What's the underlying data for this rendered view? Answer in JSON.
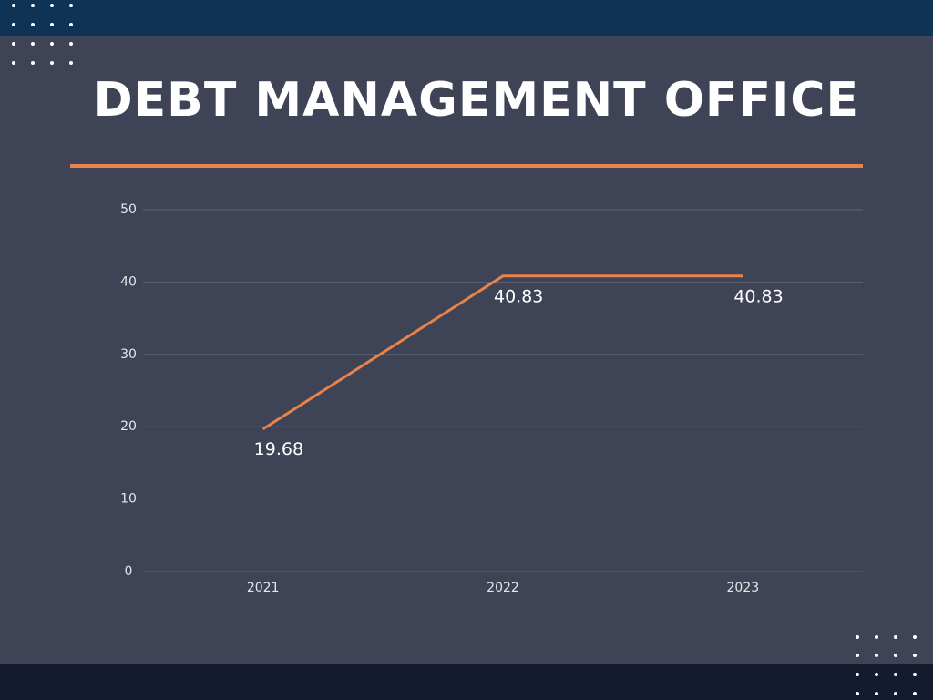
{
  "chart_data": {
    "type": "line",
    "title": "DEBT MANAGEMENT OFFICE",
    "categories": [
      "2021",
      "2022",
      "2023"
    ],
    "series": [
      {
        "name": "Debt",
        "color": "#e8834a",
        "values": [
          19.68,
          40.83,
          40.83
        ]
      }
    ],
    "ylim": [
      0,
      50
    ],
    "yticks": [
      0,
      10,
      20,
      30,
      40,
      50
    ],
    "grid": true,
    "data_labels": true
  }
}
